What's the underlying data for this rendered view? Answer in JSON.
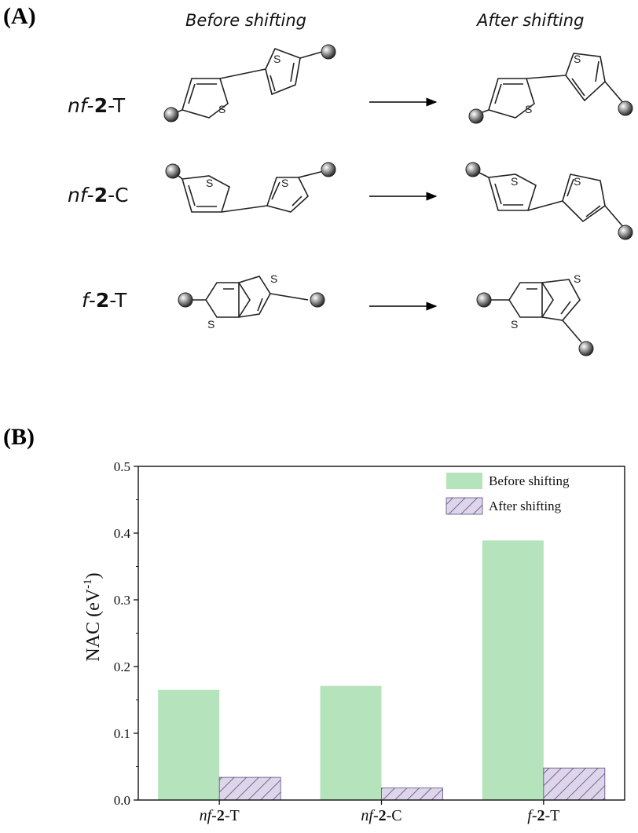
{
  "panel_a": {
    "label": "(A)",
    "col_before": "Before shifting",
    "col_after": "After shifting",
    "rows": [
      {
        "prefix": "nf",
        "dash": "-",
        "num": "2",
        "suffix": "-T"
      },
      {
        "prefix": "nf",
        "dash": "-",
        "num": "2",
        "suffix": "-C"
      },
      {
        "prefix": "f",
        "dash": "-",
        "num": "2",
        "suffix": "-T"
      }
    ],
    "atom": "S"
  },
  "panel_b": {
    "label": "(B)"
  },
  "chart_data": {
    "type": "bar",
    "categories": [
      {
        "prefix": "nf",
        "dash": "-",
        "num": "2",
        "suffix": "-T"
      },
      {
        "prefix": "nf",
        "dash": "-",
        "num": "2",
        "suffix": "-C"
      },
      {
        "prefix": "f",
        "dash": "-",
        "num": "2",
        "suffix": "-T"
      }
    ],
    "series": [
      {
        "name": "Before shifting",
        "values": [
          0.165,
          0.171,
          0.389
        ],
        "color": "#b5e3bb",
        "pattern": "solid"
      },
      {
        "name": "After shifting",
        "values": [
          0.034,
          0.018,
          0.048
        ],
        "color": "#ddd5ea",
        "pattern": "hatch"
      }
    ],
    "ylabel": {
      "text": "NAC (eV",
      "sup": "-1",
      "close": ")"
    },
    "ylim": [
      0.0,
      0.5
    ],
    "yticks": [
      "0.0",
      "0.1",
      "0.2",
      "0.3",
      "0.4",
      "0.5"
    ],
    "legend_position": "top-right",
    "grid": false
  }
}
